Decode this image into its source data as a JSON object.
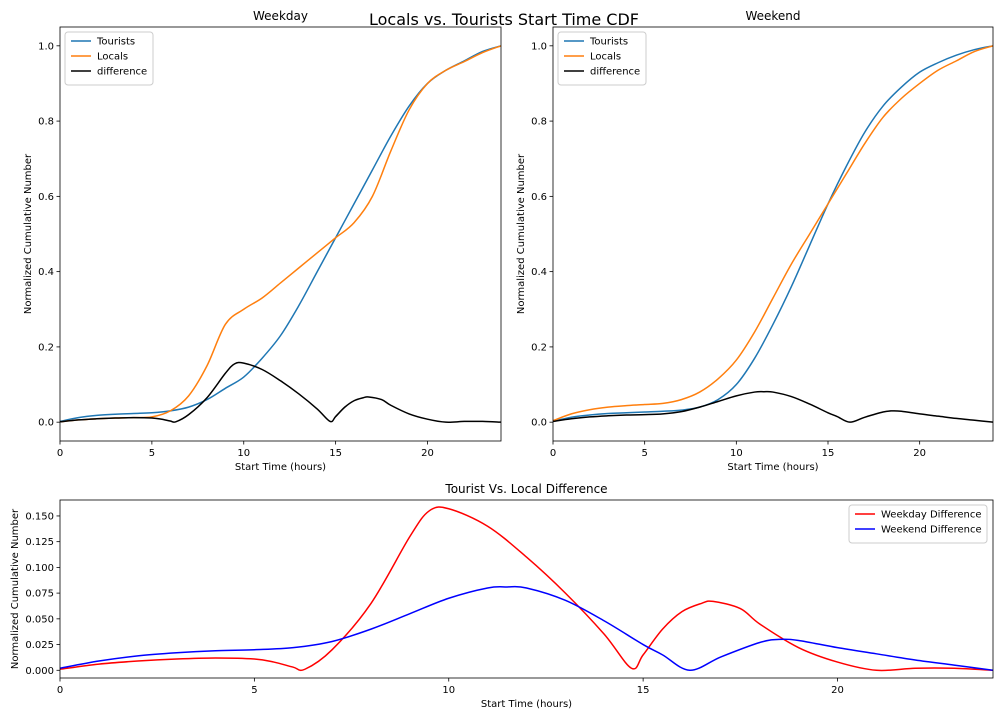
{
  "figure": {
    "suptitle": "Locals vs. Tourists Start Time CDF"
  },
  "chart_data": [
    {
      "type": "line",
      "title": "Weekday",
      "xlabel": "Start Time (hours)",
      "ylabel": "Normalized Cumulative Number",
      "xlim": [
        0,
        24
      ],
      "ylim": [
        -0.05,
        1.05
      ],
      "xticks": [
        0,
        5,
        10,
        15,
        20
      ],
      "yticks": [
        0.0,
        0.2,
        0.4,
        0.6,
        0.8,
        1.0
      ],
      "ytick_format": 1,
      "legend_position": "upper-left",
      "series": [
        {
          "name": "Tourists",
          "color": "#1f77b4",
          "x": [
            0,
            1,
            2,
            3,
            4,
            5,
            6,
            7,
            8,
            9,
            10,
            11,
            12,
            13,
            14,
            15,
            16,
            17,
            18,
            19,
            20,
            21,
            22,
            23,
            24
          ],
          "y": [
            0.002,
            0.012,
            0.018,
            0.021,
            0.023,
            0.025,
            0.03,
            0.04,
            0.06,
            0.09,
            0.12,
            0.17,
            0.23,
            0.31,
            0.4,
            0.49,
            0.58,
            0.67,
            0.76,
            0.84,
            0.9,
            0.935,
            0.96,
            0.985,
            1.0
          ]
        },
        {
          "name": "Locals",
          "color": "#ff7f0e",
          "x": [
            0,
            1,
            2,
            3,
            4,
            5,
            6,
            7,
            8,
            9,
            10,
            11,
            12,
            13,
            14,
            15,
            16,
            17,
            18,
            19,
            20,
            21,
            22,
            23,
            24
          ],
          "y": [
            0.001,
            0.006,
            0.009,
            0.011,
            0.012,
            0.014,
            0.03,
            0.07,
            0.15,
            0.26,
            0.3,
            0.33,
            0.37,
            0.41,
            0.45,
            0.49,
            0.53,
            0.6,
            0.72,
            0.83,
            0.9,
            0.935,
            0.958,
            0.982,
            1.0
          ]
        },
        {
          "name": "difference",
          "color": "#000000",
          "x": [
            0,
            1,
            2,
            3,
            4,
            5,
            5.5,
            6,
            6.3,
            7,
            8,
            9,
            9.5,
            10,
            11,
            12,
            13,
            14,
            14.7,
            15,
            15.5,
            16,
            16.5,
            16.8,
            17.5,
            18,
            19,
            20,
            21,
            22,
            23,
            24
          ],
          "y": [
            0.001,
            0.006,
            0.009,
            0.011,
            0.012,
            0.011,
            0.008,
            0.003,
            0.001,
            0.02,
            0.065,
            0.13,
            0.155,
            0.157,
            0.14,
            0.11,
            0.075,
            0.035,
            0.002,
            0.015,
            0.04,
            0.057,
            0.065,
            0.067,
            0.06,
            0.045,
            0.022,
            0.008,
            0.0,
            0.002,
            0.002,
            0.0
          ]
        }
      ]
    },
    {
      "type": "line",
      "title": "Weekend",
      "xlabel": "Start Time (hours)",
      "ylabel": "Normalized Cumulative Number",
      "xlim": [
        0,
        24
      ],
      "ylim": [
        -0.05,
        1.05
      ],
      "xticks": [
        0,
        5,
        10,
        15,
        20
      ],
      "yticks": [
        0.0,
        0.2,
        0.4,
        0.6,
        0.8,
        1.0
      ],
      "ytick_format": 1,
      "legend_position": "upper-left",
      "series": [
        {
          "name": "Tourists",
          "color": "#1f77b4",
          "x": [
            0,
            1,
            2,
            3,
            4,
            5,
            6,
            7,
            8,
            9,
            10,
            11,
            12,
            13,
            14,
            15,
            16,
            17,
            18,
            19,
            20,
            21,
            22,
            23,
            24
          ],
          "y": [
            0.002,
            0.013,
            0.019,
            0.023,
            0.025,
            0.027,
            0.029,
            0.032,
            0.04,
            0.06,
            0.1,
            0.17,
            0.26,
            0.36,
            0.47,
            0.58,
            0.68,
            0.77,
            0.84,
            0.89,
            0.93,
            0.955,
            0.975,
            0.99,
            1.0
          ]
        },
        {
          "name": "Locals",
          "color": "#ff7f0e",
          "x": [
            0,
            1,
            2,
            3,
            4,
            5,
            6,
            7,
            8,
            9,
            10,
            11,
            12,
            13,
            14,
            15,
            16,
            17,
            18,
            19,
            20,
            21,
            22,
            23,
            24
          ],
          "y": [
            0.004,
            0.022,
            0.033,
            0.04,
            0.044,
            0.047,
            0.05,
            0.06,
            0.08,
            0.115,
            0.165,
            0.24,
            0.33,
            0.42,
            0.5,
            0.58,
            0.66,
            0.74,
            0.81,
            0.86,
            0.9,
            0.935,
            0.96,
            0.985,
            1.0
          ]
        },
        {
          "name": "difference",
          "color": "#000000",
          "x": [
            0,
            1,
            2,
            3,
            4,
            5,
            6,
            7,
            8,
            9,
            10,
            11,
            11.5,
            12,
            13,
            14,
            15,
            15.5,
            16.2,
            17,
            18,
            18.5,
            19,
            20,
            21,
            22,
            23,
            24
          ],
          "y": [
            0.002,
            0.009,
            0.014,
            0.017,
            0.019,
            0.02,
            0.022,
            0.028,
            0.04,
            0.055,
            0.07,
            0.08,
            0.081,
            0.08,
            0.068,
            0.048,
            0.025,
            0.015,
            0.0,
            0.013,
            0.027,
            0.03,
            0.029,
            0.022,
            0.016,
            0.01,
            0.005,
            0.0
          ]
        }
      ]
    },
    {
      "type": "line",
      "title": "Tourist Vs. Local Difference",
      "xlabel": "Start Time (hours)",
      "ylabel": "Normalized Cumulative Number",
      "xlim": [
        0,
        24
      ],
      "ylim": [
        -0.0075,
        0.1655
      ],
      "xticks": [
        0,
        5,
        10,
        15,
        20
      ],
      "yticks": [
        0.0,
        0.025,
        0.05,
        0.075,
        0.1,
        0.125,
        0.15
      ],
      "ytick_format": 3,
      "legend_position": "upper-right",
      "series": [
        {
          "name": "Weekday Difference",
          "color": "#ff0000",
          "x": [
            0,
            1,
            2,
            3,
            4,
            5,
            5.5,
            6,
            6.3,
            7,
            8,
            9,
            9.5,
            10,
            11,
            12,
            13,
            14,
            14.7,
            15,
            15.5,
            16,
            16.5,
            16.8,
            17.5,
            18,
            19,
            20,
            21,
            22,
            23,
            24
          ],
          "y": [
            0.001,
            0.006,
            0.009,
            0.011,
            0.012,
            0.011,
            0.008,
            0.003,
            0.001,
            0.02,
            0.065,
            0.13,
            0.155,
            0.157,
            0.14,
            0.11,
            0.075,
            0.035,
            0.002,
            0.015,
            0.04,
            0.057,
            0.065,
            0.067,
            0.06,
            0.045,
            0.022,
            0.008,
            0.0,
            0.002,
            0.002,
            0.0
          ]
        },
        {
          "name": "Weekend Difference",
          "color": "#0000ff",
          "x": [
            0,
            1,
            2,
            3,
            4,
            5,
            6,
            7,
            8,
            9,
            10,
            11,
            11.5,
            12,
            13,
            14,
            15,
            15.5,
            16.2,
            17,
            18,
            18.5,
            19,
            20,
            21,
            22,
            23,
            24
          ],
          "y": [
            0.002,
            0.009,
            0.014,
            0.017,
            0.019,
            0.02,
            0.022,
            0.028,
            0.04,
            0.055,
            0.07,
            0.08,
            0.081,
            0.08,
            0.068,
            0.048,
            0.025,
            0.015,
            0.0,
            0.013,
            0.027,
            0.03,
            0.029,
            0.022,
            0.016,
            0.01,
            0.005,
            0.0
          ]
        }
      ]
    }
  ]
}
